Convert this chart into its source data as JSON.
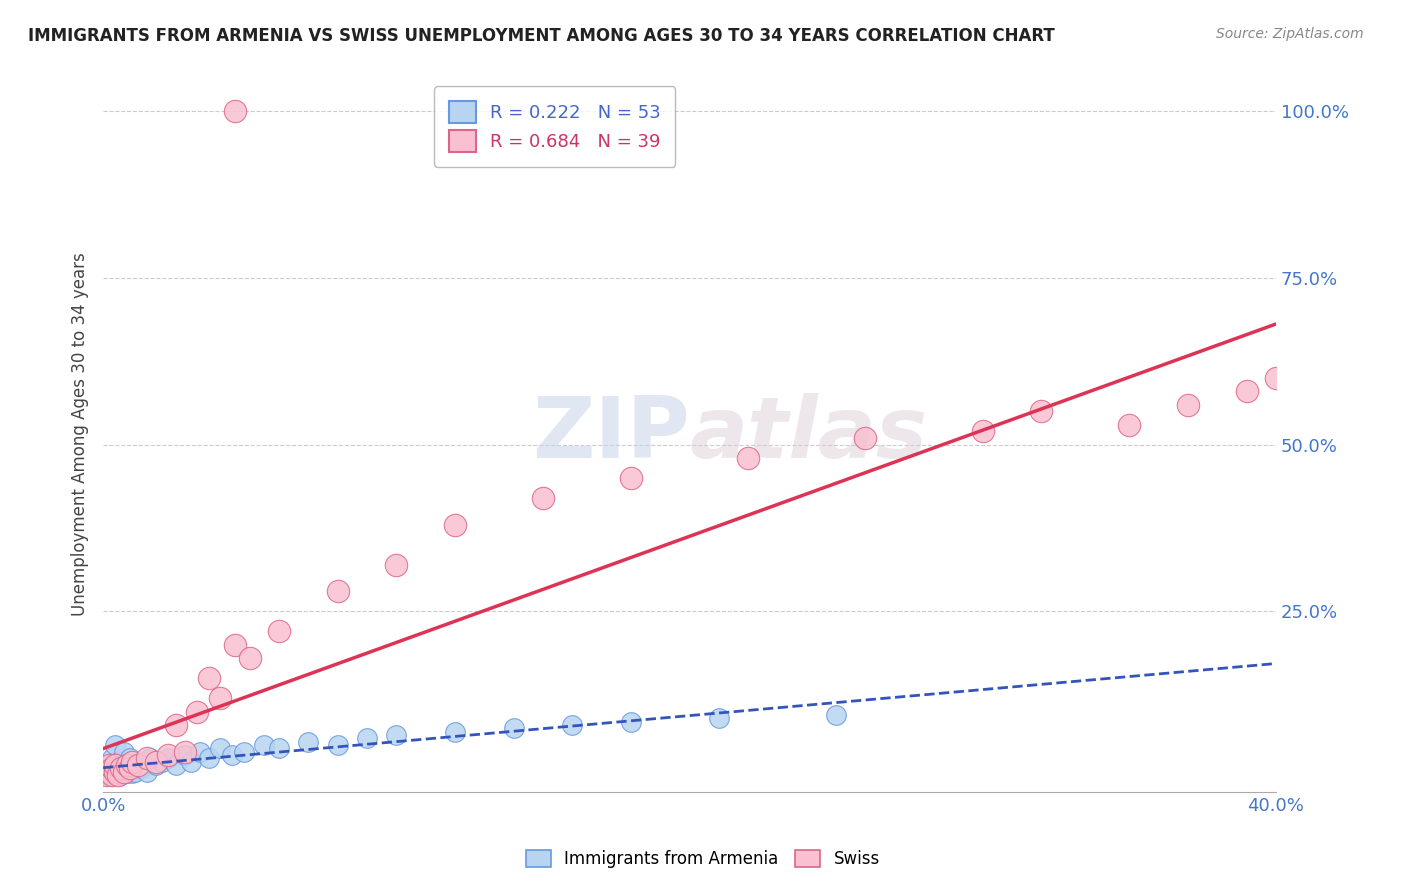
{
  "title": "IMMIGRANTS FROM ARMENIA VS SWISS UNEMPLOYMENT AMONG AGES 30 TO 34 YEARS CORRELATION CHART",
  "source": "Source: ZipAtlas.com",
  "ylabel": "Unemployment Among Ages 30 to 34 years",
  "right_yticks": [
    0.0,
    0.25,
    0.5,
    0.75,
    1.0
  ],
  "right_yticklabels": [
    "",
    "25.0%",
    "50.0%",
    "75.0%",
    "100.0%"
  ],
  "series1_label": "Immigrants from Armenia",
  "series1_R": 0.222,
  "series1_N": 53,
  "series1_color": "#b8d4f0",
  "series1_edge_color": "#6699dd",
  "series2_label": "Swiss",
  "series2_R": 0.684,
  "series2_N": 39,
  "series2_color": "#f8c0d0",
  "series2_edge_color": "#dd6688",
  "trendline1_color": "#3355bb",
  "trendline2_color": "#dd3355",
  "grid_color": "#cccccc",
  "watermark": "ZIPAtlas",
  "watermark_color": "#d0d8e8",
  "legend_facecolor": "#ffffff",
  "legend_edgecolor": "#aaaaaa",
  "series1_x": [
    0.001,
    0.001,
    0.002,
    0.002,
    0.002,
    0.003,
    0.003,
    0.003,
    0.004,
    0.004,
    0.004,
    0.005,
    0.005,
    0.005,
    0.006,
    0.006,
    0.007,
    0.007,
    0.008,
    0.008,
    0.009,
    0.009,
    0.01,
    0.01,
    0.011,
    0.012,
    0.013,
    0.014,
    0.015,
    0.016,
    0.018,
    0.02,
    0.022,
    0.025,
    0.028,
    0.03,
    0.033,
    0.036,
    0.04,
    0.044,
    0.048,
    0.055,
    0.06,
    0.07,
    0.08,
    0.09,
    0.1,
    0.12,
    0.14,
    0.16,
    0.18,
    0.21,
    0.25
  ],
  "series1_y": [
    0.005,
    0.01,
    0.005,
    0.015,
    0.02,
    0.005,
    0.01,
    0.03,
    0.005,
    0.01,
    0.05,
    0.005,
    0.015,
    0.025,
    0.005,
    0.02,
    0.01,
    0.04,
    0.008,
    0.02,
    0.01,
    0.03,
    0.008,
    0.015,
    0.01,
    0.02,
    0.015,
    0.025,
    0.01,
    0.03,
    0.02,
    0.025,
    0.03,
    0.02,
    0.035,
    0.025,
    0.04,
    0.03,
    0.045,
    0.035,
    0.04,
    0.05,
    0.045,
    0.055,
    0.05,
    0.06,
    0.065,
    0.07,
    0.075,
    0.08,
    0.085,
    0.09,
    0.095
  ],
  "series2_x": [
    0.001,
    0.002,
    0.002,
    0.003,
    0.003,
    0.004,
    0.004,
    0.005,
    0.006,
    0.007,
    0.008,
    0.009,
    0.01,
    0.012,
    0.015,
    0.018,
    0.022,
    0.025,
    0.028,
    0.032,
    0.036,
    0.04,
    0.045,
    0.05,
    0.06,
    0.08,
    0.1,
    0.12,
    0.15,
    0.18,
    0.22,
    0.26,
    0.3,
    0.32,
    0.35,
    0.37,
    0.39,
    0.4,
    0.045
  ],
  "series2_y": [
    0.005,
    0.01,
    0.02,
    0.005,
    0.015,
    0.01,
    0.02,
    0.005,
    0.015,
    0.01,
    0.02,
    0.015,
    0.025,
    0.02,
    0.03,
    0.025,
    0.035,
    0.08,
    0.04,
    0.1,
    0.15,
    0.12,
    0.2,
    0.18,
    0.22,
    0.28,
    0.32,
    0.38,
    0.42,
    0.45,
    0.48,
    0.51,
    0.52,
    0.55,
    0.53,
    0.56,
    0.58,
    0.6,
    1.0
  ],
  "xlim": [
    0.0,
    0.4
  ],
  "ylim": [
    -0.02,
    1.05
  ]
}
